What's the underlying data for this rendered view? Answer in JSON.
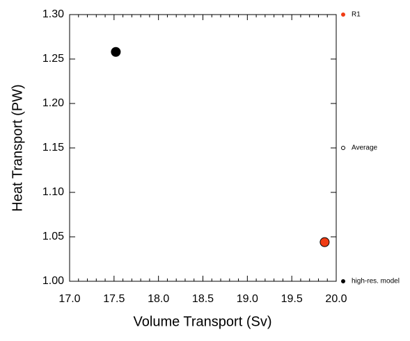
{
  "chart_data": {
    "type": "scatter",
    "xlabel": "Volume Transport (Sv)",
    "ylabel": "Heat Transport (PW)",
    "xlim": [
      17.0,
      20.0
    ],
    "xticks": [
      {
        "value": 17,
        "label": "17.0"
      },
      {
        "value": 17.5,
        "label": "17.5"
      },
      {
        "value": 18,
        "label": "18.0"
      },
      {
        "value": 18.5,
        "label": "18.5"
      },
      {
        "value": 19,
        "label": "19.0"
      },
      {
        "value": 19.5,
        "label": "19.5"
      },
      {
        "value": 20,
        "label": "20.0"
      }
    ],
    "xminorticks": [
      17.1,
      17.2,
      17.3,
      17.4,
      17.6,
      17.7,
      17.8,
      17.9,
      18.1,
      18.2,
      18.3,
      18.4,
      18.6,
      18.7,
      18.8,
      18.9,
      19.1,
      19.2,
      19.3,
      19.4,
      19.6,
      19.7,
      19.8,
      19.9
    ],
    "ylim": [
      1.0,
      1.3
    ],
    "yticks": [
      {
        "value": 1,
        "label": "1.00"
      },
      {
        "value": 1.05,
        "label": "1.05"
      },
      {
        "value": 1.1,
        "label": "1.10"
      },
      {
        "value": 1.15,
        "label": "1.15"
      },
      {
        "value": 1.2,
        "label": "1.20"
      },
      {
        "value": 1.25,
        "label": "1.25"
      },
      {
        "value": 1.3,
        "label": "1.30"
      }
    ],
    "legend": "right",
    "series": [
      {
        "name": "R1",
        "color": "#f03c14",
        "marker": "filled",
        "x": [
          19.87
        ],
        "y": [
          1.044
        ]
      },
      {
        "name": "Average",
        "color": "#000000",
        "marker": "open",
        "x": [],
        "y": []
      },
      {
        "name": "high-res. model",
        "color": "#000000",
        "marker": "filled",
        "x": [
          17.52
        ],
        "y": [
          1.258
        ]
      }
    ]
  }
}
